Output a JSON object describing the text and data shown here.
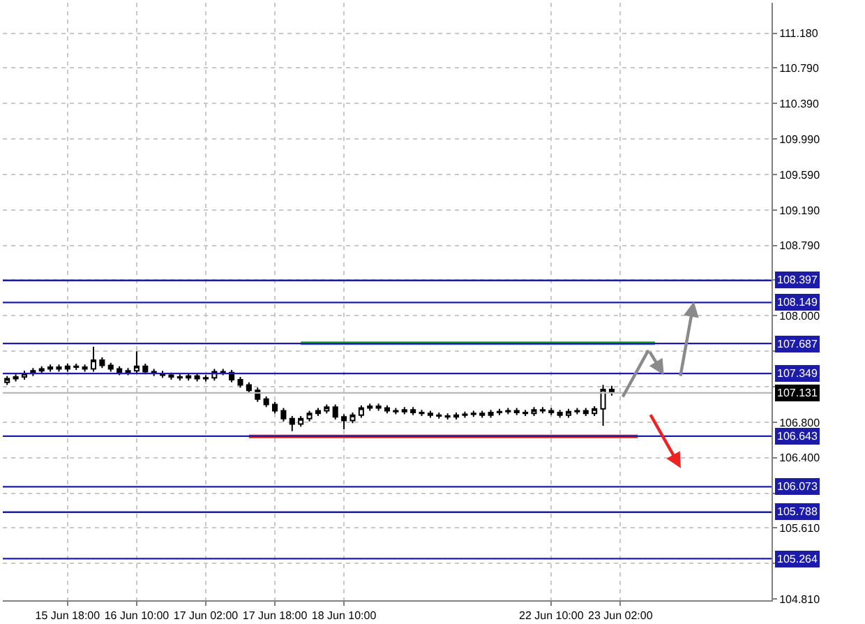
{
  "chart_data": {
    "type": "candlestick",
    "categories": [
      null,
      null,
      null,
      null,
      null,
      null,
      null,
      "15 Jun 18:00",
      null,
      null,
      null,
      null,
      null,
      null,
      null,
      "16 Jun 10:00",
      null,
      null,
      null,
      null,
      null,
      null,
      null,
      "17 Jun 02:00",
      null,
      null,
      null,
      null,
      null,
      null,
      null,
      "17 Jun 18:00",
      null,
      null,
      null,
      null,
      null,
      null,
      null,
      "18 Jun 10:00",
      null,
      null,
      null,
      null,
      null,
      null,
      null,
      null,
      null,
      null,
      null,
      null,
      null,
      null,
      null,
      null,
      null,
      null,
      null,
      null,
      null,
      null,
      null,
      "22 Jun 10:00",
      null,
      null,
      null,
      null,
      null,
      null,
      null,
      "23 Jun 02:00",
      null,
      null,
      null,
      null,
      null,
      null,
      null,
      null,
      null,
      null,
      null,
      null,
      null,
      null,
      null,
      null,
      null
    ],
    "ohlc": [
      [
        107.25,
        107.32,
        107.22,
        107.29
      ],
      [
        107.29,
        107.34,
        107.26,
        107.31
      ],
      [
        107.31,
        107.38,
        107.28,
        107.35
      ],
      [
        107.35,
        107.41,
        107.32,
        107.38
      ],
      [
        107.38,
        107.43,
        107.35,
        107.4
      ],
      [
        107.4,
        107.45,
        107.37,
        107.42
      ],
      [
        107.42,
        107.45,
        107.37,
        107.4
      ],
      [
        107.4,
        107.46,
        107.37,
        107.43
      ],
      [
        107.43,
        107.46,
        107.39,
        107.42
      ],
      [
        107.42,
        107.45,
        107.37,
        107.4
      ],
      [
        107.4,
        107.65,
        107.37,
        107.5
      ],
      [
        107.5,
        107.53,
        107.41,
        107.44
      ],
      [
        107.44,
        107.47,
        107.37,
        107.4
      ],
      [
        107.4,
        107.43,
        107.33,
        107.36
      ],
      [
        107.36,
        107.41,
        107.33,
        107.38
      ],
      [
        107.38,
        107.6,
        107.35,
        107.43
      ],
      [
        107.43,
        107.46,
        107.34,
        107.37
      ],
      [
        107.37,
        107.4,
        107.32,
        107.35
      ],
      [
        107.35,
        107.38,
        107.3,
        107.33
      ],
      [
        107.33,
        107.36,
        107.28,
        107.31
      ],
      [
        107.31,
        107.34,
        107.27,
        107.3
      ],
      [
        107.3,
        107.35,
        107.27,
        107.32
      ],
      [
        107.32,
        107.35,
        107.26,
        107.29
      ],
      [
        107.29,
        107.33,
        107.26,
        107.3
      ],
      [
        107.3,
        107.4,
        107.27,
        107.37
      ],
      [
        107.37,
        107.4,
        107.33,
        107.36
      ],
      [
        107.36,
        107.39,
        107.25,
        107.28
      ],
      [
        107.28,
        107.31,
        107.19,
        107.22
      ],
      [
        107.22,
        107.25,
        107.13,
        107.16
      ],
      [
        107.16,
        107.19,
        107.03,
        107.06
      ],
      [
        107.06,
        107.09,
        106.97,
        107.0
      ],
      [
        107.0,
        107.03,
        106.9,
        106.93
      ],
      [
        106.93,
        106.96,
        106.81,
        106.84
      ],
      [
        106.84,
        106.87,
        106.7,
        106.78
      ],
      [
        106.78,
        106.87,
        106.75,
        106.84
      ],
      [
        106.84,
        106.93,
        106.81,
        106.9
      ],
      [
        106.9,
        106.96,
        106.87,
        106.93
      ],
      [
        106.93,
        107.0,
        106.9,
        106.97
      ],
      [
        106.97,
        107.0,
        106.83,
        106.86
      ],
      [
        106.86,
        106.89,
        106.72,
        106.82
      ],
      [
        106.82,
        106.91,
        106.79,
        106.88
      ],
      [
        106.88,
        106.99,
        106.85,
        106.96
      ],
      [
        106.96,
        107.01,
        106.93,
        106.98
      ],
      [
        106.98,
        107.01,
        106.93,
        106.96
      ],
      [
        106.96,
        106.99,
        106.9,
        106.93
      ],
      [
        106.93,
        106.96,
        106.89,
        106.92
      ],
      [
        106.92,
        106.97,
        106.89,
        106.94
      ],
      [
        106.94,
        106.97,
        106.88,
        106.91
      ],
      [
        106.91,
        106.94,
        106.87,
        106.9
      ],
      [
        106.9,
        106.93,
        106.85,
        106.88
      ],
      [
        106.88,
        106.91,
        106.84,
        106.87
      ],
      [
        106.87,
        106.9,
        106.83,
        106.86
      ],
      [
        106.86,
        106.91,
        106.83,
        106.88
      ],
      [
        106.88,
        106.92,
        106.85,
        106.89
      ],
      [
        106.89,
        106.93,
        106.86,
        106.9
      ],
      [
        106.9,
        106.93,
        106.85,
        106.88
      ],
      [
        106.88,
        106.94,
        106.85,
        106.91
      ],
      [
        106.91,
        106.95,
        106.88,
        106.92
      ],
      [
        106.92,
        106.96,
        106.89,
        106.93
      ],
      [
        106.93,
        106.96,
        106.88,
        106.91
      ],
      [
        106.91,
        106.94,
        106.87,
        106.9
      ],
      [
        106.9,
        106.97,
        106.87,
        106.94
      ],
      [
        106.94,
        106.97,
        106.9,
        106.93
      ],
      [
        106.93,
        106.96,
        106.88,
        106.91
      ],
      [
        106.91,
        106.94,
        106.85,
        106.88
      ],
      [
        106.88,
        106.95,
        106.85,
        106.92
      ],
      [
        106.92,
        106.96,
        106.89,
        106.93
      ],
      [
        106.93,
        106.96,
        106.87,
        106.9
      ],
      [
        106.9,
        106.98,
        106.87,
        106.95
      ],
      [
        106.95,
        107.22,
        106.76,
        107.17
      ],
      [
        107.17,
        107.21,
        107.1,
        107.13
      ],
      null,
      null,
      null,
      null,
      null,
      null,
      null,
      null,
      null,
      null,
      null,
      null,
      null,
      null,
      null,
      null,
      null,
      null
    ],
    "series": [
      {
        "type": "line",
        "color": "#22a33a",
        "values": [
          null,
          null,
          null,
          null,
          null,
          null,
          null,
          null,
          null,
          null,
          null,
          null,
          null,
          null,
          null,
          null,
          null,
          null,
          null,
          null,
          null,
          null,
          null,
          null,
          null,
          null,
          null,
          null,
          null,
          null,
          null,
          null,
          null,
          null,
          107.69,
          107.69,
          107.69,
          107.69,
          107.69,
          107.69,
          107.69,
          107.69,
          107.69,
          107.69,
          107.69,
          107.69,
          107.69,
          107.69,
          107.69,
          107.69,
          107.69,
          107.69,
          107.69,
          107.69,
          107.69,
          107.69,
          107.69,
          107.69,
          107.69,
          107.69,
          107.69,
          107.69,
          107.69,
          107.69,
          107.69,
          107.69,
          107.69,
          107.69,
          107.69,
          107.69,
          107.69,
          107.69,
          107.69,
          107.69,
          107.69,
          107.69,
          null,
          null,
          null,
          null,
          null,
          null,
          null,
          null,
          null,
          null,
          null,
          null,
          null
        ]
      },
      {
        "type": "line",
        "color": "#ee2222",
        "values": [
          null,
          null,
          null,
          null,
          null,
          null,
          null,
          null,
          null,
          null,
          null,
          null,
          null,
          null,
          null,
          null,
          null,
          null,
          null,
          null,
          null,
          null,
          null,
          null,
          null,
          null,
          null,
          null,
          106.64,
          106.64,
          106.64,
          106.64,
          106.64,
          106.64,
          106.64,
          106.64,
          106.64,
          106.64,
          106.64,
          106.64,
          106.64,
          106.64,
          106.64,
          106.64,
          106.64,
          106.64,
          106.64,
          106.64,
          106.64,
          106.64,
          106.64,
          106.64,
          106.64,
          106.64,
          106.64,
          106.64,
          106.64,
          106.64,
          106.64,
          106.64,
          106.64,
          106.64,
          106.64,
          106.64,
          106.64,
          106.64,
          106.64,
          106.64,
          106.64,
          106.64,
          106.64,
          106.64,
          106.64,
          106.64,
          null,
          null,
          null,
          null,
          null,
          null,
          null,
          null,
          null,
          null,
          null,
          null,
          null,
          null,
          null
        ]
      }
    ],
    "ref_lines": [
      {
        "axis": "y",
        "value": 108.397,
        "label": "108.397",
        "color": "#1c1ca8"
      },
      {
        "axis": "y",
        "value": 108.149,
        "label": "108.149",
        "color": "#1c1ca8"
      },
      {
        "axis": "y",
        "value": 107.687,
        "label": "107.687",
        "color": "#1c1ca8"
      },
      {
        "axis": "y",
        "value": 107.349,
        "label": "107.349",
        "color": "#1c1ca8"
      },
      {
        "axis": "y",
        "value": 107.131,
        "label": "107.131",
        "color": "#b8b8b8"
      },
      {
        "axis": "y",
        "value": 106.643,
        "label": "106.643",
        "color": "#1c1ca8"
      },
      {
        "axis": "y",
        "value": 106.073,
        "label": "106.073",
        "color": "#1c1ca8"
      },
      {
        "axis": "y",
        "value": 105.788,
        "label": "105.788",
        "color": "#1c1ca8"
      },
      {
        "axis": "y",
        "value": 105.264,
        "label": "105.264",
        "color": "#1c1ca8"
      }
    ],
    "ylim": [
      104.795,
      111.524
    ],
    "yticks": [
      {
        "value": 111.18,
        "label": "111.180"
      },
      {
        "value": 110.79,
        "label": "110.790"
      },
      {
        "value": 110.39,
        "label": "110.390"
      },
      {
        "value": 109.99,
        "label": "109.990"
      },
      {
        "value": 109.59,
        "label": "109.590"
      },
      {
        "value": 109.19,
        "label": "109.190"
      },
      {
        "value": 108.79,
        "label": "108.790"
      },
      {
        "value": 108.4,
        "label": null
      },
      {
        "value": 108.0,
        "label": "108.000"
      },
      {
        "value": 107.6,
        "label": null
      },
      {
        "value": 107.2,
        "label": null
      },
      {
        "value": 106.8,
        "label": "106.800"
      },
      {
        "value": 106.4,
        "label": "106.400"
      },
      {
        "value": 106.0,
        "label": null
      },
      {
        "value": 105.61,
        "label": "105.610"
      },
      {
        "value": 105.21,
        "label": null
      },
      {
        "value": 104.81,
        "label": "104.810"
      }
    ],
    "grid": true
  }
}
